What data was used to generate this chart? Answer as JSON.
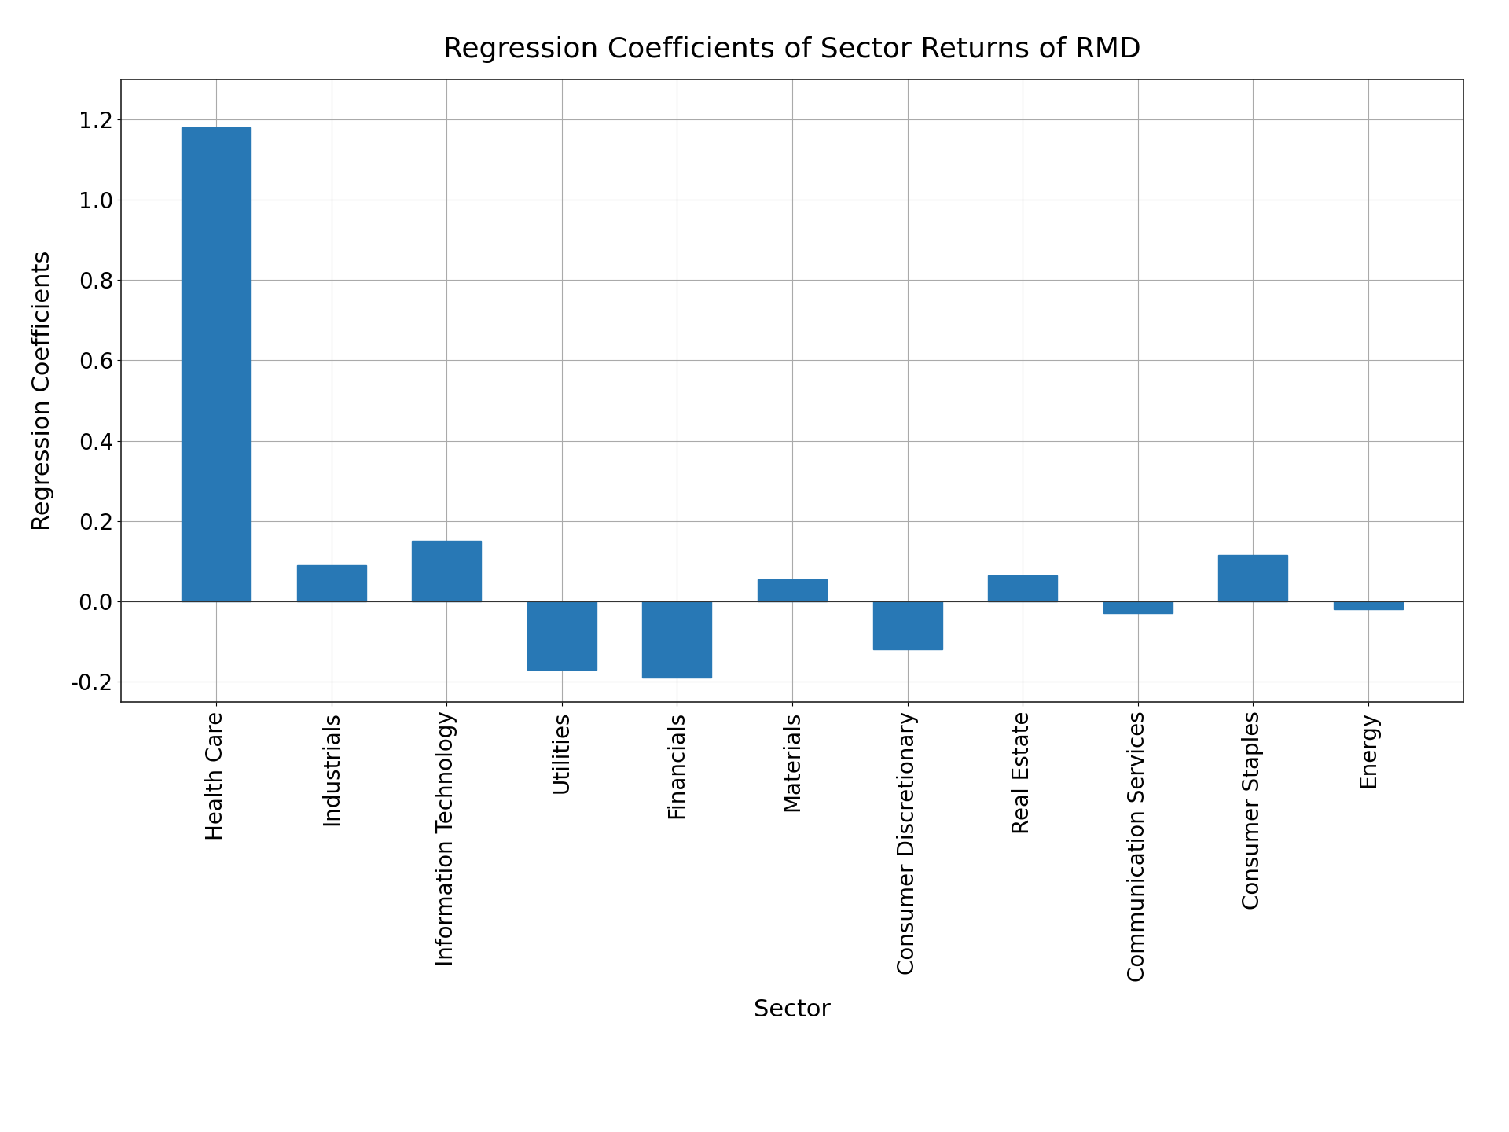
{
  "categories": [
    "Health Care",
    "Industrials",
    "Information Technology",
    "Utilities",
    "Financials",
    "Materials",
    "Consumer Discretionary",
    "Real Estate",
    "Communication Services",
    "Consumer Staples",
    "Energy"
  ],
  "values": [
    1.18,
    0.09,
    0.15,
    -0.17,
    -0.19,
    0.055,
    -0.12,
    0.065,
    -0.03,
    0.115,
    -0.02
  ],
  "bar_color": "#2878b5",
  "title": "Regression Coefficients of Sector Returns of RMD",
  "xlabel": "Sector",
  "ylabel": "Regression Coefficients",
  "ylim": [
    -0.25,
    1.3
  ],
  "yticks": [
    -0.2,
    0.0,
    0.2,
    0.4,
    0.6,
    0.8,
    1.0,
    1.2
  ],
  "title_fontsize": 26,
  "label_fontsize": 22,
  "tick_fontsize": 20,
  "background_color": "#ffffff",
  "grid_color": "#aaaaaa"
}
